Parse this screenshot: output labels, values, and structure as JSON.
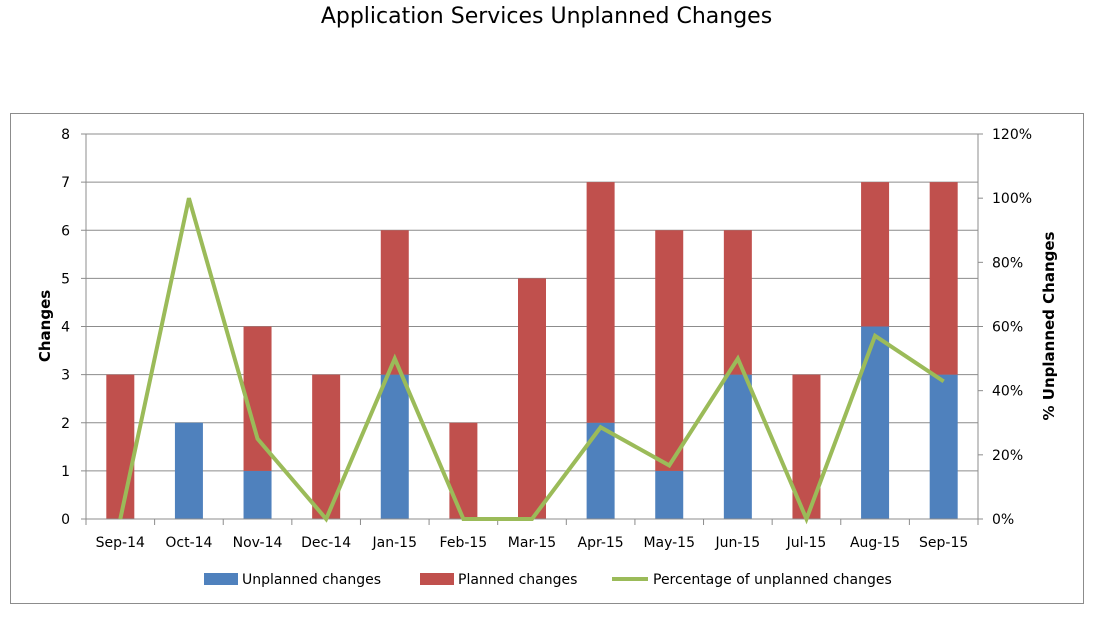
{
  "title": "Application Services Unplanned Changes",
  "chart_data": {
    "type": "bar",
    "stacked": true,
    "title": "Application Services Unplanned Changes",
    "categories": [
      "Sep-14",
      "Oct-14",
      "Nov-14",
      "Dec-14",
      "Jan-15",
      "Feb-15",
      "Mar-15",
      "Apr-15",
      "May-15",
      "Jun-15",
      "Jul-15",
      "Aug-15",
      "Sep-15"
    ],
    "series": [
      {
        "name": "Unplanned changes",
        "type": "bar",
        "axis": "left",
        "color": "#4f81bd",
        "values": [
          0,
          2,
          1,
          0,
          3,
          0,
          0,
          2,
          1,
          3,
          0,
          4,
          3
        ]
      },
      {
        "name": "Planned changes",
        "type": "bar",
        "axis": "left",
        "color": "#c0504d",
        "values": [
          3,
          0,
          3,
          3,
          3,
          2,
          5,
          5,
          5,
          3,
          3,
          3,
          4
        ]
      },
      {
        "name": "Percentage of unplanned changes",
        "type": "line",
        "axis": "right",
        "color": "#9bbb59",
        "values": [
          0,
          100,
          25,
          0,
          50,
          0,
          0,
          28.6,
          16.7,
          50,
          0,
          57.1,
          42.9
        ]
      }
    ],
    "ylabel": "Changes",
    "y2label": "% Unplanned Changes",
    "ylim": [
      0,
      8
    ],
    "y2lim": [
      0,
      120
    ],
    "yticks": [
      "0",
      "1",
      "2",
      "3",
      "4",
      "5",
      "6",
      "7",
      "8"
    ],
    "y2ticks": [
      "0%",
      "20%",
      "40%",
      "60%",
      "80%",
      "100%",
      "120%"
    ],
    "grid": true,
    "legend_position": "bottom"
  }
}
